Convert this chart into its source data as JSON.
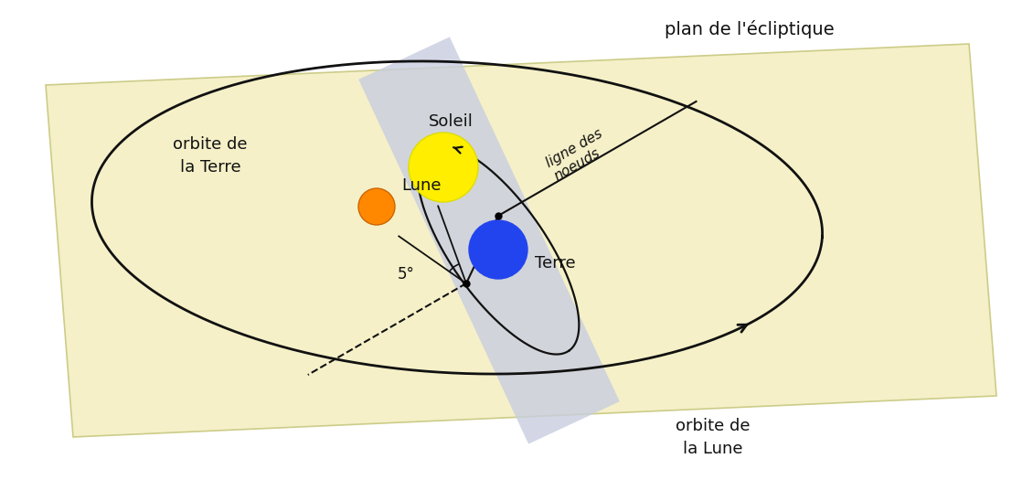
{
  "bg_color": "#FFFFFF",
  "ecliptic_plane_color": "#F5F0C8",
  "moon_plane_color": "#C8CEDF",
  "earth_color": "#2244EE",
  "sun_color": "#FFEE00",
  "moon_color": "#FF8800",
  "orbit_color": "#111111",
  "text_color": "#111111",
  "title_text": "plan de l'écliptique",
  "label_orbite_terre": "orbite de\nla Terre",
  "label_orbite_lune": "orbite de\nla Lune",
  "label_soleil": "Soleil",
  "label_lune": "Lune",
  "label_terre": "Terre",
  "label_ligne_noeuds": "ligne des\nnoeuds",
  "label_5deg": "5°",
  "ecliptic_edge_color": "#CCCC88"
}
